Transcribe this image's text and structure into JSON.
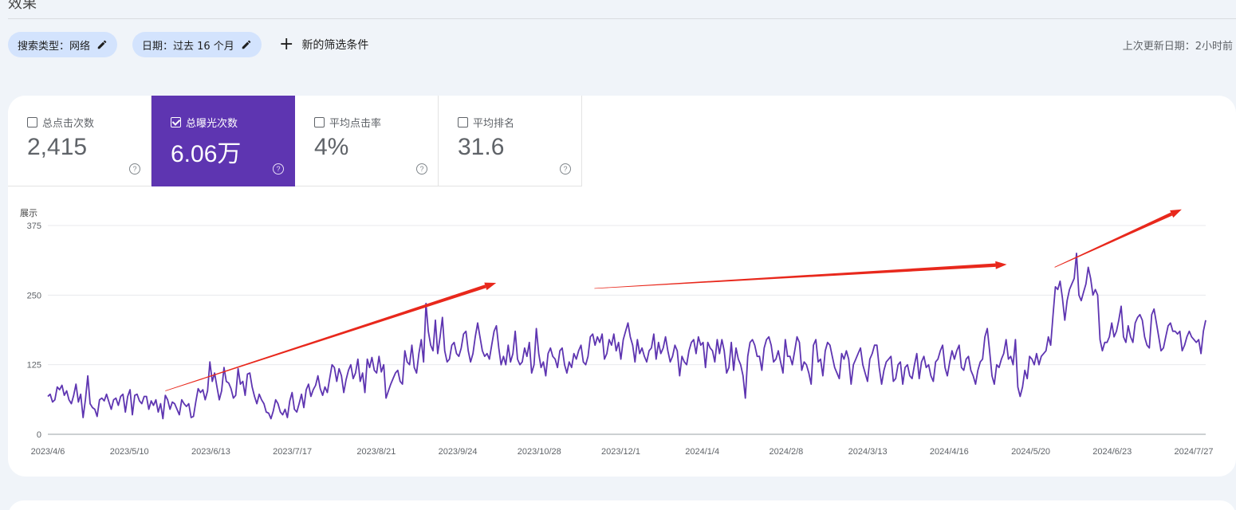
{
  "header": {
    "title": "效果"
  },
  "filters": {
    "search_type": "搜索类型：网络",
    "date": "日期：过去 16 个月",
    "add_filter": "新的筛选条件",
    "last_updated": "上次更新日期：2小时前"
  },
  "metrics": [
    {
      "label": "总点击次数",
      "value": "2,415",
      "checked": false
    },
    {
      "label": "总曝光次数",
      "value": "6.06万",
      "checked": true
    },
    {
      "label": "平均点击率",
      "value": "4%",
      "checked": false
    },
    {
      "label": "平均排名",
      "value": "31.6",
      "checked": false
    }
  ],
  "colors": {
    "accent": "#5e35b1",
    "line": "#5e35b1",
    "annotation_arrow": "#e8281c",
    "chip_bg": "#d3e3fd"
  },
  "icons": {
    "chip_edit": "pencil-icon",
    "add_filter": "plus-icon",
    "metric_help": "help-circle-icon",
    "metric_checkbox": "checkbox-icon"
  },
  "chart_data": {
    "type": "line",
    "ylabel": "展示",
    "ylim": [
      0,
      375
    ],
    "yticks": [
      0,
      125,
      250,
      375
    ],
    "grid": true,
    "x_tick_labels": [
      "2023/4/6",
      "2023/5/10",
      "2023/6/13",
      "2023/7/17",
      "2023/8/21",
      "2023/9/24",
      "2023/10/28",
      "2023/12/1",
      "2024/1/4",
      "2024/2/8",
      "2024/3/13",
      "2024/4/16",
      "2024/5/20",
      "2024/6/23",
      "2024/7/27"
    ],
    "x_range": [
      "2023/4/6",
      "2024/8/1"
    ],
    "series": [
      {
        "values": [
          68,
          72,
          58,
          62,
          85,
          80,
          88,
          70,
          78,
          62,
          55,
          70,
          90,
          58,
          72,
          30,
          62,
          105,
          55,
          48,
          45,
          32,
          62,
          65,
          60,
          72,
          58,
          45,
          62,
          65,
          52,
          68,
          72,
          40,
          68,
          80,
          35,
          70,
          72,
          60,
          55,
          68,
          68,
          45,
          60,
          52,
          62,
          40,
          55,
          28,
          70,
          62,
          45,
          58,
          55,
          45,
          35,
          62,
          55,
          50,
          55,
          30,
          32,
          58,
          82,
          75,
          80,
          62,
          78,
          130,
          95,
          110,
          85,
          62,
          78,
          120,
          95,
          92,
          82,
          65,
          70,
          118,
          90,
          95,
          70,
          108,
          110,
          85,
          68,
          55,
          72,
          62,
          55,
          40,
          38,
          28,
          42,
          62,
          55,
          40,
          35,
          45,
          30,
          60,
          75,
          45,
          40,
          55,
          72,
          48,
          80,
          90,
          68,
          80,
          88,
          105,
          82,
          70,
          85,
          75,
          100,
          125,
          120,
          95,
          118,
          105,
          75,
          98,
          115,
          125,
          100,
          110,
          135,
          95,
          110,
          75,
          135,
          120,
          138,
          115,
          110,
          140,
          112,
          125,
          65,
          78,
          90,
          100,
          110,
          115,
          95,
          90,
          150,
          130,
          125,
          160,
          120,
          110,
          145,
          170,
          130,
          235,
          185,
          160,
          150,
          205,
          145,
          175,
          210,
          150,
          130,
          135,
          160,
          165,
          145,
          140,
          155,
          180,
          185,
          150,
          130,
          145,
          175,
          200,
          175,
          150,
          140,
          145,
          135,
          160,
          185,
          195,
          155,
          125,
          140,
          125,
          160,
          130,
          145,
          185,
          135,
          125,
          130,
          155,
          140,
          165,
          110,
          125,
          190,
          145,
          120,
          130,
          105,
          145,
          155,
          140,
          135,
          120,
          150,
          155,
          125,
          110,
          130,
          120,
          145,
          135,
          150,
          160,
          130,
          125,
          140,
          175,
          180,
          160,
          175,
          165,
          180,
          135,
          145,
          170,
          160,
          180,
          150,
          165,
          135,
          170,
          185,
          200,
          175,
          160,
          130,
          170,
          145,
          155,
          140,
          130,
          150,
          155,
          180,
          135,
          165,
          145,
          155,
          175,
          150,
          130,
          140,
          160,
          150,
          105,
          140,
          130,
          125,
          150,
          165,
          170,
          145,
          175,
          160,
          165,
          120,
          165,
          155,
          150,
          130,
          170,
          145,
          170,
          150,
          110,
          120,
          165,
          115,
          155,
          135,
          125,
          105,
          65,
          140,
          165,
          170,
          160,
          140,
          140,
          115,
          155,
          170,
          175,
          160,
          130,
          135,
          150,
          130,
          110,
          170,
          140,
          140,
          125,
          150,
          175,
          165,
          115,
          130,
          125,
          110,
          90,
          160,
          170,
          130,
          135,
          105,
          150,
          165,
          160,
          140,
          120,
          110,
          100,
          145,
          135,
          150,
          135,
          90,
          125,
          135,
          145,
          155,
          125,
          110,
          95,
          135,
          145,
          160,
          160,
          120,
          90,
          115,
          130,
          135,
          140,
          95,
          100,
          125,
          130,
          90,
          120,
          125,
          105,
          100,
          125,
          145,
          100,
          130,
          140,
          120,
          125,
          105,
          95,
          130,
          135,
          150,
          160,
          120,
          105,
          130,
          150,
          135,
          150,
          160,
          120,
          115,
          135,
          140,
          115,
          105,
          90,
          115,
          130,
          135,
          175,
          190,
          150,
          105,
          90,
          125,
          120,
          135,
          145,
          170,
          135,
          140,
          125,
          170,
          85,
          68,
          85,
          115,
          100,
          140,
          135,
          125,
          145,
          125,
          140,
          145,
          150,
          175,
          160,
          215,
          265,
          260,
          275,
          245,
          205,
          240,
          260,
          270,
          280,
          325,
          250,
          240,
          255,
          270,
          300,
          280,
          250,
          260,
          250,
          170,
          150,
          165,
          165,
          175,
          200,
          175,
          185,
          205,
          230,
          175,
          165,
          195,
          175,
          165,
          200,
          210,
          215,
          205,
          175,
          160,
          155,
          215,
          225,
          200,
          175,
          150,
          155,
          175,
          195,
          200,
          185,
          185,
          180,
          185,
          150,
          160,
          175,
          185,
          175,
          170,
          165,
          170,
          145,
          185,
          205
        ]
      }
    ],
    "annotations": [
      {
        "type": "arrow",
        "from": [
          "2023/5/25",
          78
        ],
        "to": [
          "2023/10/10",
          272
        ]
      },
      {
        "type": "arrow",
        "from": [
          "2023/11/20",
          262
        ],
        "to": [
          "2024/5/10",
          305
        ]
      },
      {
        "type": "arrow",
        "from": [
          "2024/5/30",
          300
        ],
        "to": [
          "2024/7/22",
          404
        ]
      }
    ]
  }
}
